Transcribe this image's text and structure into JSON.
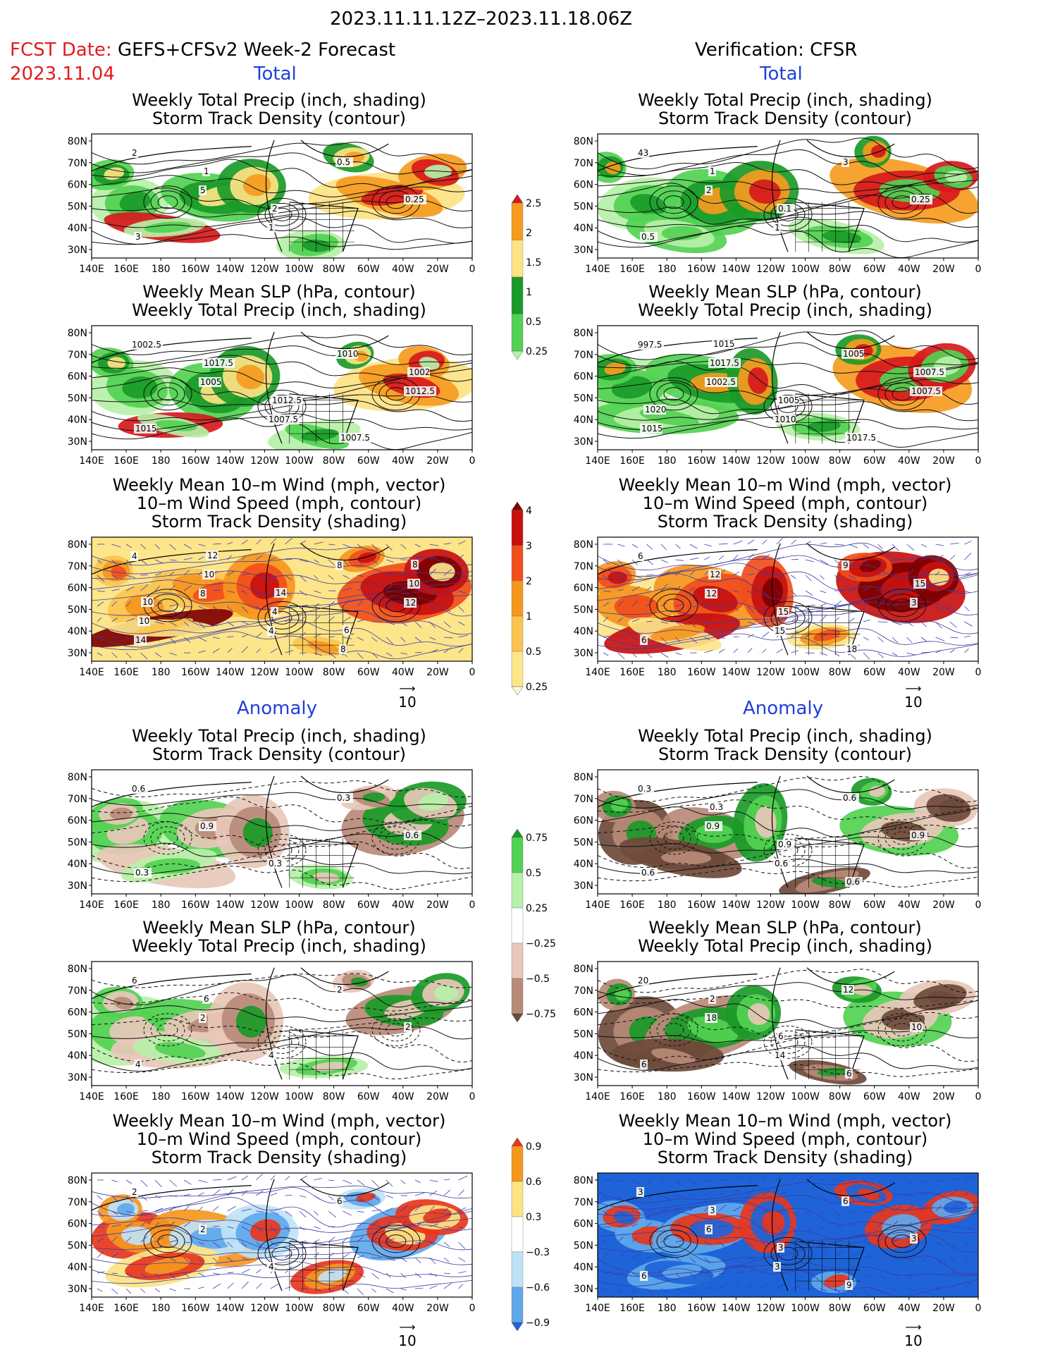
{
  "header": {
    "date_range": "2023.11.11.12Z–2023.11.18.06Z",
    "fcst_label": "FCST Date:",
    "fcst_system": "GEFS+CFSv2 Week-2 Forecast",
    "fcst_date": "2023.11.04",
    "verification": "Verification: CFSR",
    "total": "Total",
    "anomaly": "Anomaly"
  },
  "axes": {
    "lon_labels": [
      "140E",
      "160E",
      "180",
      "160W",
      "140W",
      "120W",
      "100W",
      "80W",
      "60W",
      "40W",
      "20W",
      "0"
    ],
    "lat_labels": [
      "80N",
      "70N",
      "60N",
      "50N",
      "40N",
      "30N"
    ]
  },
  "titles": {
    "precip_storm": [
      "Weekly Total Precip (inch, shading)",
      "Storm Track Density (contour)"
    ],
    "slp_precip": [
      "Weekly Mean SLP (hPa, contour)",
      "Weekly Total Precip (inch, shading)"
    ],
    "wind": [
      "Weekly Mean 10–m Wind (mph, vector)",
      "10–m Wind Speed (mph, contour)",
      "Storm Track Density (shading)"
    ]
  },
  "vector_ref": "10",
  "colorbars": {
    "precip_total": {
      "labels": [
        "2.5",
        "2",
        "1.5",
        "1",
        "0.5",
        "0.25"
      ],
      "colors": [
        "#d7191c",
        "#f59b1f",
        "#fde384",
        "#1a9a28",
        "#52d152",
        "#b7f0a8"
      ]
    },
    "storm_total": {
      "labels": [
        "4",
        "3",
        "2",
        "1",
        "0.5",
        "0.25"
      ],
      "colors": [
        "#7f0000",
        "#c81010",
        "#f04e1c",
        "#f6961f",
        "#fbc450",
        "#fde58a",
        "#fffbd4"
      ]
    },
    "precip_anom": {
      "labels": [
        "0.75",
        "0.5",
        "0.25",
        "−0.25",
        "−0.5",
        "−0.75"
      ],
      "colors": [
        "#1a9a28",
        "#52d152",
        "#b7f0a8",
        "#ffffff",
        "#e8c8b8",
        "#b88a78",
        "#6e4a3a"
      ]
    },
    "storm_anom": {
      "labels": [
        "0.9",
        "0.6",
        "0.3",
        "−0.3",
        "−0.6",
        "−0.9"
      ],
      "colors": [
        "#e8361c",
        "#f6961f",
        "#fde384",
        "#ffffff",
        "#bfe3f5",
        "#5fa8ec",
        "#1e64d8"
      ]
    }
  },
  "panel_labels": {
    "fc_precip_total": [
      "2",
      "5",
      "1",
      "0.5",
      "0.25",
      "3",
      "1",
      "2"
    ],
    "ob_precip_total": [
      "43",
      "2",
      "1",
      "3",
      "0.25",
      "0.5",
      "1",
      "0.1"
    ],
    "fc_slp_total": [
      "1002.5",
      "1005",
      "1007.5",
      "1010",
      "1012.5",
      "1015",
      "1017.5",
      "1012.5",
      "1007.5",
      "1002"
    ],
    "ob_slp_total": [
      "997.5",
      "1002.5",
      "1010",
      "1005",
      "1007.5",
      "1015",
      "1017.5",
      "1005",
      "1017.5",
      "1007.5",
      "1020",
      "1015"
    ],
    "fc_wind_total": [
      "4",
      "8",
      "4",
      "8",
      "12",
      "14",
      "10",
      "4",
      "8",
      "10",
      "10",
      "12",
      "14",
      "6",
      "8",
      "10"
    ],
    "ob_wind_total": [
      "6",
      "12",
      "15",
      "9",
      "3",
      "6",
      "12",
      "15",
      "18",
      "15"
    ],
    "fc_precip_anom": [
      "0.6",
      "0.9",
      "0.3",
      "0.3",
      "0.6",
      "0.3"
    ],
    "ob_precip_anom": [
      "0.3",
      "0.9",
      "0.6",
      "0.6",
      "0.9",
      "0.6",
      "0.3",
      "0.9",
      "0.6"
    ],
    "fc_slp_anom": [
      "6",
      "2",
      "4",
      "2",
      "2",
      "4",
      "6"
    ],
    "ob_slp_anom": [
      "20",
      "18",
      "14",
      "12",
      "10",
      "6",
      "2",
      "6",
      "6"
    ],
    "fc_wind_anom": [
      "2",
      "2",
      "4",
      "6"
    ],
    "ob_wind_anom": [
      "3",
      "6",
      "3",
      "6",
      "3",
      "6",
      "3",
      "3",
      "9"
    ]
  }
}
